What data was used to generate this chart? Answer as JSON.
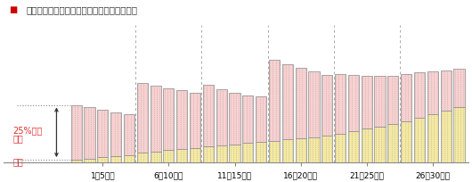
{
  "title": "ご融資期間を３０年とした場合のイメージ図",
  "title_color": "#333333",
  "legend_square_color": "#cc0000",
  "xlabel_groups": [
    "1～5年目",
    "6～10年目",
    "11～15年目",
    "16～20年目",
    "21～25年目",
    "26～30年目"
  ],
  "label_risoku": "利息",
  "label_ganpon": "元本",
  "label_25pct": "25%以内",
  "bar_color_interest": "#f9d0d0",
  "bar_color_principal": "#f5e9a0",
  "bar_edge_color": "#888888",
  "background_color": "#ffffff",
  "principal_values": [
    2,
    3,
    4,
    5,
    6,
    8,
    9,
    10,
    11,
    12,
    13,
    14,
    15,
    16,
    17,
    18,
    19,
    20,
    21,
    22,
    24,
    26,
    28,
    30,
    32,
    34,
    37,
    40,
    43,
    46
  ],
  "interest_values": [
    46,
    43,
    40,
    37,
    34,
    58,
    55,
    52,
    49,
    46,
    52,
    47,
    43,
    40,
    38,
    68,
    63,
    59,
    55,
    51,
    50,
    47,
    44,
    42,
    40,
    40,
    38,
    36,
    34,
    32
  ],
  "dotted_line_color": "#aaaaaa"
}
